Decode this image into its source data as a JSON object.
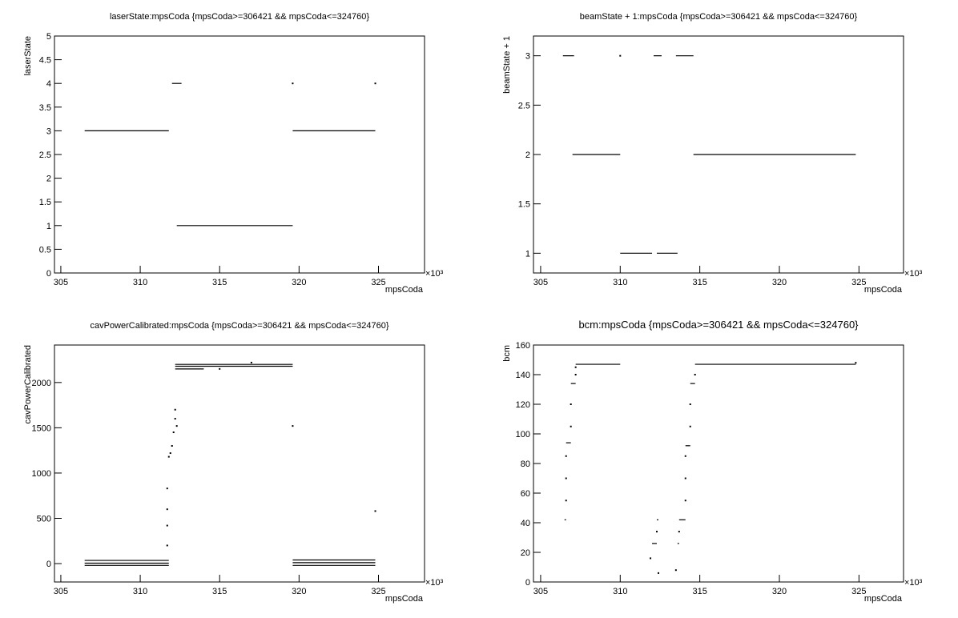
{
  "chart_data": [
    {
      "type": "scatter",
      "title": "laserState:mpsCoda {mpsCoda>=306421 && mpsCoda<=324760}",
      "x_label": "mpsCoda",
      "y_label": "laserState",
      "x_multiplier": "×10³",
      "xlim": [
        304.6,
        327.9
      ],
      "ylim": [
        0,
        5
      ],
      "xticks": [
        305,
        310,
        315,
        320,
        325
      ],
      "yticks": [
        0,
        0.5,
        1,
        1.5,
        2,
        2.5,
        3,
        3.5,
        4,
        4.5,
        5
      ],
      "segments": [
        {
          "x": [
            306.5,
            311.8
          ],
          "y": 3
        },
        {
          "x": [
            312.0,
            312.6
          ],
          "y": 4
        },
        {
          "x": [
            312.3,
            319.6
          ],
          "y": 1
        },
        {
          "x": [
            319.6,
            324.8
          ],
          "y": 3
        }
      ],
      "points": {
        "x": [
          319.6,
          324.8
        ],
        "y": [
          4,
          4
        ]
      }
    },
    {
      "type": "scatter",
      "title": "beamState + 1:mpsCoda {mpsCoda>=306421 && mpsCoda<=324760}",
      "x_label": "mpsCoda",
      "y_label": "beamState + 1",
      "x_multiplier": "×10³",
      "xlim": [
        304.55,
        327.8
      ],
      "ylim": [
        0.8,
        3.2
      ],
      "xticks": [
        305,
        310,
        315,
        320,
        325
      ],
      "yticks": [
        1,
        1.5,
        2,
        2.5,
        3
      ],
      "segments": [
        {
          "x": [
            306.4,
            307.1
          ],
          "y": 3
        },
        {
          "x": [
            307.0,
            310.0
          ],
          "y": 2
        },
        {
          "x": [
            310.0,
            312.0
          ],
          "y": 1
        },
        {
          "x": [
            312.1,
            312.6
          ],
          "y": 3
        },
        {
          "x": [
            312.3,
            313.6
          ],
          "y": 1
        },
        {
          "x": [
            313.5,
            314.6
          ],
          "y": 3
        },
        {
          "x": [
            314.6,
            324.8
          ],
          "y": 2
        }
      ],
      "points": {
        "x": [
          310.0
        ],
        "y": [
          3
        ]
      }
    },
    {
      "type": "scatter",
      "title": "cavPowerCalibrated:mpsCoda {mpsCoda>=306421 && mpsCoda<=324760}",
      "x_label": "mpsCoda",
      "y_label": "cavPowerCalibrated",
      "x_multiplier": "×10³",
      "xlim": [
        304.6,
        327.9
      ],
      "ylim": [
        -203,
        2414
      ],
      "xticks": [
        305,
        310,
        315,
        320,
        325
      ],
      "yticks": [
        0,
        500,
        1000,
        1500,
        2000
      ],
      "segments": [
        {
          "x": [
            306.5,
            311.8
          ],
          "y": 35
        },
        {
          "x": [
            306.5,
            311.8
          ],
          "y": 5
        },
        {
          "x": [
            306.5,
            311.8
          ],
          "y": -20
        },
        {
          "x": [
            312.2,
            319.6
          ],
          "y": 2200
        },
        {
          "x": [
            312.2,
            319.6
          ],
          "y": 2180
        },
        {
          "x": [
            312.2,
            314.0
          ],
          "y": 2150
        },
        {
          "x": [
            319.6,
            324.8
          ],
          "y": 40
        },
        {
          "x": [
            319.6,
            324.8
          ],
          "y": 10
        },
        {
          "x": [
            319.6,
            324.8
          ],
          "y": -20
        }
      ],
      "points": {
        "x": [
          311.7,
          311.7,
          311.7,
          311.7,
          311.8,
          311.9,
          312.0,
          312.1,
          312.2,
          312.2,
          312.3,
          319.6,
          324.8,
          317.0,
          315.0
        ],
        "y": [
          200,
          420,
          600,
          830,
          1180,
          1220,
          1300,
          1450,
          1600,
          1700,
          1520,
          1520,
          580,
          2220,
          2150
        ]
      }
    },
    {
      "type": "scatter",
      "title": "bcm:mpsCoda {mpsCoda>=306421 && mpsCoda<=324760}",
      "x_label": "mpsCoda",
      "y_label": "bcm",
      "x_multiplier": "×10³",
      "xlim": [
        304.55,
        327.8
      ],
      "ylim": [
        0,
        160
      ],
      "xticks": [
        305,
        310,
        315,
        320,
        325
      ],
      "yticks": [
        0,
        20,
        40,
        60,
        80,
        100,
        120,
        140,
        160
      ],
      "segments": [
        {
          "x": [
            306.5,
            306.6
          ],
          "y": 42
        },
        {
          "x": [
            306.6,
            306.9
          ],
          "y": 94
        },
        {
          "x": [
            306.9,
            307.2
          ],
          "y": 134
        },
        {
          "x": [
            307.2,
            310.0
          ],
          "y": 147
        },
        {
          "x": [
            312.0,
            312.3
          ],
          "y": 26
        },
        {
          "x": [
            312.3,
            312.4
          ],
          "y": 42
        },
        {
          "x": [
            313.6,
            313.7
          ],
          "y": 26
        },
        {
          "x": [
            313.7,
            314.1
          ],
          "y": 42
        },
        {
          "x": [
            314.1,
            314.4
          ],
          "y": 92
        },
        {
          "x": [
            314.4,
            314.7
          ],
          "y": 134
        },
        {
          "x": [
            314.7,
            324.8
          ],
          "y": 147
        }
      ],
      "points": {
        "x": [
          306.6,
          306.6,
          306.6,
          306.9,
          306.9,
          307.2,
          307.2,
          311.9,
          312.3,
          312.4,
          313.5,
          313.7,
          314.1,
          314.1,
          314.1,
          314.4,
          314.4,
          314.7,
          324.8
        ],
        "y": [
          55,
          70,
          85,
          105,
          120,
          140,
          145,
          16,
          34,
          6,
          8,
          34,
          55,
          70,
          85,
          105,
          120,
          140,
          148
        ]
      }
    }
  ]
}
